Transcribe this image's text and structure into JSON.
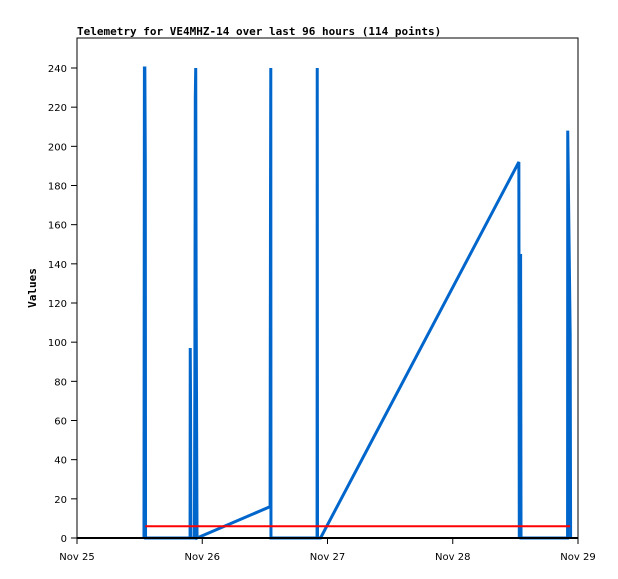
{
  "chart_data": {
    "type": "line",
    "title": "Telemetry for VE4MHZ-14 over last 96 hours (114 points)",
    "xlabel": "",
    "ylabel": "Values",
    "xlim": [
      "11-25 00:00",
      "11-29 00:00"
    ],
    "ylim": [
      0,
      250
    ],
    "x_ticks": [
      {
        "label": "Nov 25",
        "at": "11-25 00:00"
      },
      {
        "label": "Nov 26",
        "at": "11-26 00:00"
      },
      {
        "label": "Nov 27",
        "at": "11-27 00:00"
      },
      {
        "label": "Nov 28",
        "at": "11-28 00:00"
      },
      {
        "label": "Nov 29",
        "at": "11-29 00:00"
      }
    ],
    "y_ticks": [
      0,
      20,
      40,
      60,
      80,
      100,
      120,
      140,
      160,
      180,
      200,
      220,
      240
    ],
    "grid": false,
    "series": [
      {
        "color": "#000000",
        "points": [
          [
            "11-25 00:00",
            0
          ],
          [
            "11-29 00:00",
            0
          ]
        ]
      },
      {
        "color": "#ff0000",
        "points": [
          [
            "11-25 13:05",
            6
          ],
          [
            "11-28 22:30",
            6
          ]
        ]
      },
      {
        "color": "#0066cc",
        "points": [
          [
            "11-25 12:50",
            0
          ],
          [
            "11-25 12:52",
            97
          ],
          [
            "11-25 12:55",
            240
          ],
          [
            "11-25 13:00",
            240
          ],
          [
            "11-25 13:05",
            192
          ],
          [
            "11-25 13:08",
            0
          ],
          [
            "11-25 21:40",
            0
          ],
          [
            "11-25 21:42",
            97
          ],
          [
            "11-25 21:45",
            73
          ],
          [
            "11-25 21:48",
            25
          ],
          [
            "11-25 21:50",
            0
          ],
          [
            "11-25 22:30",
            0
          ],
          [
            "11-25 22:35",
            80
          ],
          [
            "11-25 22:40",
            225
          ],
          [
            "11-25 22:45",
            240
          ],
          [
            "11-25 22:50",
            120
          ],
          [
            "11-25 23:00",
            0
          ],
          [
            "11-26 13:00",
            16
          ],
          [
            "11-26 13:02",
            88
          ],
          [
            "11-26 13:05",
            177
          ],
          [
            "11-26 13:08",
            240
          ],
          [
            "11-26 13:10",
            0
          ],
          [
            "11-26 22:00",
            0
          ],
          [
            "11-26 22:02",
            240
          ],
          [
            "11-26 22:05",
            0
          ],
          [
            "11-26 22:40",
            0
          ],
          [
            "11-28 12:40",
            192
          ],
          [
            "11-28 12:45",
            0
          ],
          [
            "11-28 13:00",
            145
          ],
          [
            "11-28 13:05",
            0
          ],
          [
            "11-28 22:00",
            0
          ],
          [
            "11-28 22:02",
            208
          ],
          [
            "11-28 22:30",
            104
          ],
          [
            "11-28 22:35",
            0
          ]
        ]
      }
    ]
  }
}
